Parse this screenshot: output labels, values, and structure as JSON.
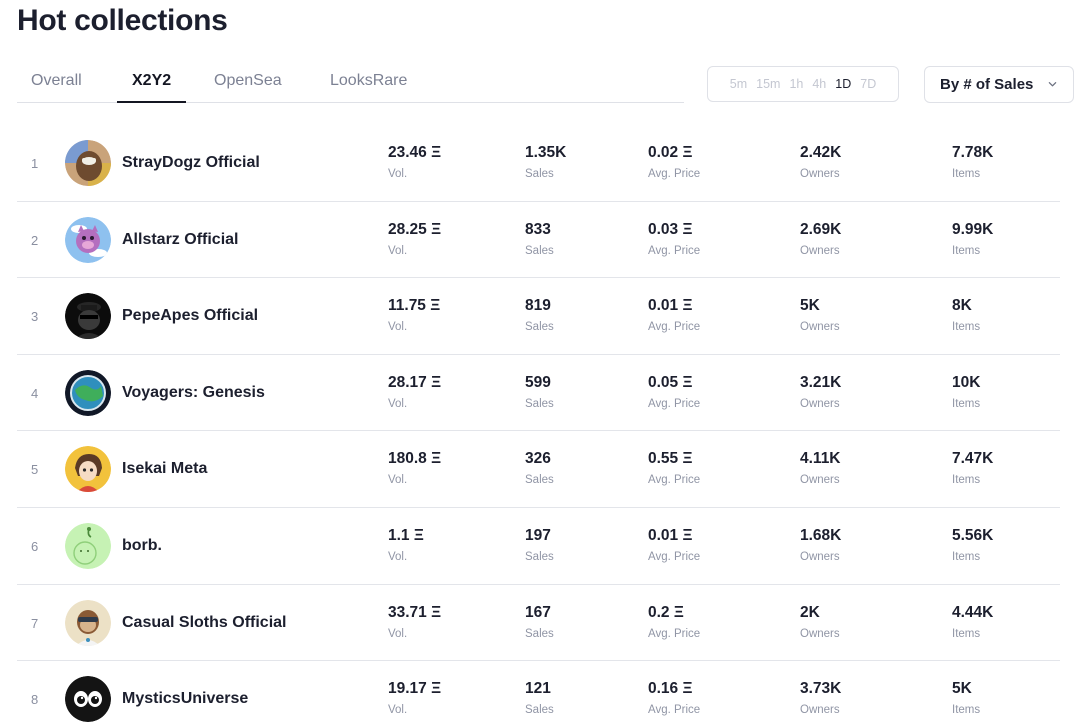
{
  "page_title": "Hot collections",
  "tabs": [
    {
      "label": "Overall",
      "active": false
    },
    {
      "label": "X2Y2",
      "active": true
    },
    {
      "label": "OpenSea",
      "active": false
    },
    {
      "label": "LooksRare",
      "active": false
    }
  ],
  "time_filters": [
    {
      "label": "5m",
      "active": false
    },
    {
      "label": "15m",
      "active": false
    },
    {
      "label": "1h",
      "active": false
    },
    {
      "label": "4h",
      "active": false
    },
    {
      "label": "1D",
      "active": true
    },
    {
      "label": "7D",
      "active": false
    }
  ],
  "sort": {
    "selected": "By # of Sales",
    "icon": "chevron-down-icon"
  },
  "stat_labels": {
    "vol": "Vol.",
    "sales": "Sales",
    "avg": "Avg. Price",
    "owners": "Owners",
    "items": "Items"
  },
  "collections": [
    {
      "rank": "1",
      "name": "StrayDogz Official",
      "vol": "23.46 Ξ",
      "sales": "1.35K",
      "avg": "0.02 Ξ",
      "owners": "2.42K",
      "items": "7.78K",
      "avatar": "straydogz-avatar",
      "avatar_color": "#8d6a4a"
    },
    {
      "rank": "2",
      "name": "Allstarz Official",
      "vol": "28.25 Ξ",
      "sales": "833",
      "avg": "0.03 Ξ",
      "owners": "2.69K",
      "items": "9.99K",
      "avatar": "allstarz-avatar",
      "avatar_color": "#7fb2e6"
    },
    {
      "rank": "3",
      "name": "PepeApes Official",
      "vol": "11.75 Ξ",
      "sales": "819",
      "avg": "0.01 Ξ",
      "owners": "5K",
      "items": "8K",
      "avatar": "pepeapes-avatar",
      "avatar_color": "#111111"
    },
    {
      "rank": "4",
      "name": "Voyagers: Genesis",
      "vol": "28.17 Ξ",
      "sales": "599",
      "avg": "0.05 Ξ",
      "owners": "3.21K",
      "items": "10K",
      "avatar": "voyagers-avatar",
      "avatar_color": "#2f9a5a"
    },
    {
      "rank": "5",
      "name": "Isekai Meta",
      "vol": "180.8 Ξ",
      "sales": "326",
      "avg": "0.55 Ξ",
      "owners": "4.11K",
      "items": "7.47K",
      "avatar": "isekai-avatar",
      "avatar_color": "#f2c23c"
    },
    {
      "rank": "6",
      "name": "borb.",
      "vol": "1.1 Ξ",
      "sales": "197",
      "avg": "0.01 Ξ",
      "owners": "1.68K",
      "items": "5.56K",
      "avatar": "borb-avatar",
      "avatar_color": "#c6f2b4"
    },
    {
      "rank": "7",
      "name": "Casual Sloths Official",
      "vol": "33.71 Ξ",
      "sales": "167",
      "avg": "0.2 Ξ",
      "owners": "2K",
      "items": "4.44K",
      "avatar": "sloths-avatar",
      "avatar_color": "#e9dcc0"
    },
    {
      "rank": "8",
      "name": "MysticsUniverse",
      "vol": "19.17 Ξ",
      "sales": "121",
      "avg": "0.16 Ξ",
      "owners": "3.73K",
      "items": "5K",
      "avatar": "mystics-avatar",
      "avatar_color": "#151515"
    }
  ]
}
